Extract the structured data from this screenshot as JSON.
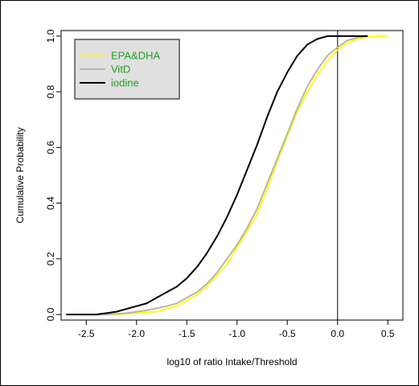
{
  "chart_data": {
    "type": "line",
    "title": "",
    "xlabel": "log10 of ratio Intake/Threshold",
    "ylabel": "Cumulative Probability",
    "xlim": [
      -2.75,
      0.65
    ],
    "ylim": [
      -0.02,
      1.02
    ],
    "x_ticks": [
      -2.5,
      -2.0,
      -1.5,
      -1.0,
      -0.5,
      0.0,
      0.5
    ],
    "x_tick_labels": [
      "-2.5",
      "-2.0",
      "-1.5",
      "-1.0",
      "-0.5",
      "0.0",
      "0.5"
    ],
    "y_ticks": [
      0.0,
      0.2,
      0.4,
      0.6,
      0.8,
      1.0
    ],
    "y_tick_labels": [
      "0.0",
      "0.2",
      "0.4",
      "0.6",
      "0.8",
      "1.0"
    ],
    "grid": false,
    "legend_position": "top-left",
    "reference_line_x": 0.0,
    "colors": {
      "EPA&DHA": "#ffff00",
      "VitD": "#b4b4b4",
      "iodine": "#000000",
      "legend_text": "#22a022",
      "legend_bg": "#e0e0e0"
    },
    "series": [
      {
        "name": "EPA&DHA",
        "x": [
          -2.45,
          -2.2,
          -2.0,
          -1.8,
          -1.6,
          -1.5,
          -1.4,
          -1.3,
          -1.2,
          -1.1,
          -1.0,
          -0.9,
          -0.8,
          -0.7,
          -0.6,
          -0.5,
          -0.4,
          -0.3,
          -0.2,
          -0.1,
          0.0,
          0.1,
          0.2,
          0.3,
          0.4,
          0.5
        ],
        "y": [
          0.0,
          0.0,
          0.005,
          0.01,
          0.03,
          0.05,
          0.07,
          0.1,
          0.14,
          0.18,
          0.24,
          0.3,
          0.36,
          0.45,
          0.55,
          0.64,
          0.73,
          0.8,
          0.86,
          0.91,
          0.95,
          0.975,
          0.99,
          0.997,
          1.0,
          1.0
        ]
      },
      {
        "name": "VitD",
        "x": [
          -2.55,
          -2.3,
          -2.1,
          -1.9,
          -1.7,
          -1.6,
          -1.5,
          -1.4,
          -1.3,
          -1.2,
          -1.1,
          -1.0,
          -0.9,
          -0.8,
          -0.7,
          -0.6,
          -0.5,
          -0.4,
          -0.3,
          -0.2,
          -0.1,
          0.0,
          0.1,
          0.2,
          0.3
        ],
        "y": [
          0.0,
          0.0,
          0.005,
          0.015,
          0.03,
          0.04,
          0.06,
          0.08,
          0.11,
          0.15,
          0.2,
          0.25,
          0.31,
          0.38,
          0.47,
          0.56,
          0.65,
          0.74,
          0.82,
          0.88,
          0.93,
          0.96,
          0.985,
          0.995,
          1.0
        ]
      },
      {
        "name": "iodine",
        "x": [
          -2.7,
          -2.4,
          -2.2,
          -2.0,
          -1.9,
          -1.8,
          -1.7,
          -1.6,
          -1.5,
          -1.4,
          -1.3,
          -1.2,
          -1.1,
          -1.0,
          -0.9,
          -0.8,
          -0.7,
          -0.6,
          -0.5,
          -0.4,
          -0.3,
          -0.2,
          -0.1,
          0.0,
          0.1,
          0.2,
          0.3
        ],
        "y": [
          0.0,
          0.0,
          0.01,
          0.03,
          0.04,
          0.06,
          0.08,
          0.1,
          0.13,
          0.17,
          0.22,
          0.28,
          0.35,
          0.43,
          0.52,
          0.61,
          0.71,
          0.8,
          0.87,
          0.93,
          0.97,
          0.99,
          1.0,
          1.0,
          1.0,
          1.0,
          1.0
        ]
      }
    ]
  }
}
